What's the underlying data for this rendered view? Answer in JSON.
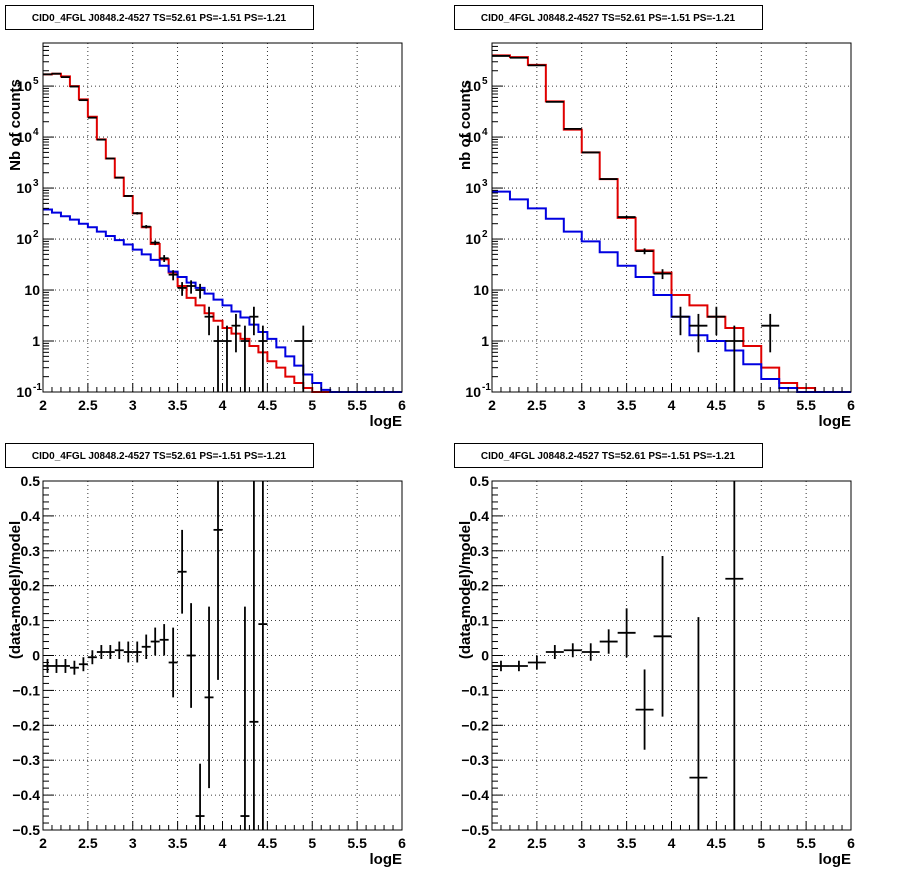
{
  "chart_data": [
    {
      "type": "line",
      "title": "CID0_4FGL J0848.2-4527 TS=52.61 PS=-1.51 PS=-1.21",
      "xlabel": "logE",
      "ylabel": "Nb of counts",
      "xlim": [
        2,
        6
      ],
      "ylim": [
        0.1,
        700000
      ],
      "yscale": "log",
      "grid": true,
      "x_ticks": [
        "2",
        "2.5",
        "3",
        "3.5",
        "4",
        "4.5",
        "5",
        "5.5",
        "6"
      ],
      "y_ticks": [
        {
          "value": 0.1,
          "base": "10",
          "exp": "-1"
        },
        {
          "value": 1,
          "label": "1"
        },
        {
          "value": 10,
          "label": "10"
        },
        {
          "value": 100,
          "base": "10",
          "exp": "2"
        },
        {
          "value": 1000,
          "base": "10",
          "exp": "3"
        },
        {
          "value": 10000,
          "base": "10",
          "exp": "4"
        },
        {
          "value": 100000,
          "base": "10",
          "exp": "5"
        }
      ],
      "bin_edges": [
        2.0,
        2.1,
        2.2,
        2.3,
        2.4,
        2.5,
        2.6,
        2.7,
        2.8,
        2.9,
        3.0,
        3.1,
        3.2,
        3.3,
        3.4,
        3.5,
        3.6,
        3.7,
        3.8,
        3.9,
        4.0,
        4.1,
        4.2,
        4.3,
        4.4,
        4.5,
        4.6,
        4.7,
        4.8,
        4.9,
        5.0,
        5.1,
        5.2,
        5.3,
        5.4,
        5.5,
        5.6,
        5.7,
        5.8,
        5.9,
        6.0
      ],
      "series": [
        {
          "color": "#e00000",
          "values": [
            170000,
            175000,
            155000,
            100000,
            55000,
            25000,
            9000,
            3800,
            1600,
            700,
            320,
            170,
            80,
            40,
            22,
            12,
            7,
            5,
            3.5,
            2.5,
            1.8,
            1.4,
            1.1,
            0.8,
            0.6,
            0.4,
            0.3,
            0.2,
            0.15,
            0.12,
            0.1,
            0.1,
            0.1,
            0.1,
            0.1,
            0.1,
            0.1,
            0.1,
            0.1,
            0.1
          ]
        },
        {
          "color": "#0000e0",
          "values": [
            380,
            330,
            280,
            240,
            200,
            170,
            140,
            115,
            95,
            78,
            62,
            50,
            39,
            30,
            23,
            18,
            14,
            11,
            8.5,
            6.5,
            5,
            3.8,
            2.9,
            2.1,
            1.5,
            1.1,
            0.75,
            0.5,
            0.33,
            0.22,
            0.15,
            0.11,
            0.1,
            0.1,
            0.1,
            0.1,
            0.1,
            0.1,
            0.1,
            0.1
          ]
        }
      ],
      "points": [
        {
          "x": 2.05,
          "y": 170000,
          "err": 400,
          "xerr": 0.05
        },
        {
          "x": 2.15,
          "y": 175000,
          "err": 420,
          "xerr": 0.05
        },
        {
          "x": 2.25,
          "y": 150000,
          "err": 390,
          "xerr": 0.05
        },
        {
          "x": 2.35,
          "y": 98000,
          "err": 310,
          "xerr": 0.05
        },
        {
          "x": 2.45,
          "y": 53000,
          "err": 230,
          "xerr": 0.05
        },
        {
          "x": 2.55,
          "y": 24000,
          "err": 155,
          "xerr": 0.05
        },
        {
          "x": 2.65,
          "y": 8900,
          "err": 94,
          "xerr": 0.05
        },
        {
          "x": 2.75,
          "y": 3800,
          "err": 62,
          "xerr": 0.05
        },
        {
          "x": 2.85,
          "y": 1600,
          "err": 40,
          "xerr": 0.05
        },
        {
          "x": 2.95,
          "y": 700,
          "err": 26,
          "xerr": 0.05
        },
        {
          "x": 3.05,
          "y": 320,
          "err": 18,
          "xerr": 0.05
        },
        {
          "x": 3.15,
          "y": 175,
          "err": 13,
          "xerr": 0.05
        },
        {
          "x": 3.25,
          "y": 85,
          "err": 9,
          "xerr": 0.05
        },
        {
          "x": 3.35,
          "y": 42,
          "err": 6.5,
          "xerr": 0.05
        },
        {
          "x": 3.45,
          "y": 20,
          "err": 4.5,
          "xerr": 0.05
        },
        {
          "x": 3.55,
          "y": 11,
          "err": 3.3,
          "xerr": 0.05
        },
        {
          "x": 3.65,
          "y": 12,
          "err": 3.5,
          "xerr": 0.05
        },
        {
          "x": 3.75,
          "y": 10,
          "err": 3.2,
          "xerr": 0.05
        },
        {
          "x": 3.85,
          "y": 3,
          "err": 1.7,
          "xerr": 0.05
        },
        {
          "x": 3.95,
          "y": 1,
          "err": 1,
          "xerr": 0.05
        },
        {
          "x": 4.05,
          "y": 1,
          "err": 1,
          "xerr": 0.05
        },
        {
          "x": 4.15,
          "y": 2,
          "err": 1.4,
          "xerr": 0.05
        },
        {
          "x": 4.25,
          "y": 1,
          "err": 1,
          "xerr": 0.05
        },
        {
          "x": 4.35,
          "y": 3,
          "err": 1.7,
          "xerr": 0.05
        },
        {
          "x": 4.45,
          "y": 1,
          "err": 1,
          "xerr": 0.05
        },
        {
          "x": 4.9,
          "y": 1,
          "err": 1,
          "xerr": 0.1
        }
      ]
    },
    {
      "type": "line",
      "title": "CID0_4FGL J0848.2-4527 TS=52.61 PS=-1.51 PS=-1.21",
      "xlabel": "logE",
      "ylabel": "nb of counts",
      "xlim": [
        2,
        6
      ],
      "ylim": [
        0.1,
        700000
      ],
      "yscale": "log",
      "grid": true,
      "x_ticks": [
        "2",
        "2.5",
        "3",
        "3.5",
        "4",
        "4.5",
        "5",
        "5.5",
        "6"
      ],
      "y_ticks": [
        {
          "value": 0.1,
          "base": "10",
          "exp": "-1"
        },
        {
          "value": 1,
          "label": "1"
        },
        {
          "value": 10,
          "label": "10"
        },
        {
          "value": 100,
          "base": "10",
          "exp": "2"
        },
        {
          "value": 1000,
          "base": "10",
          "exp": "3"
        },
        {
          "value": 10000,
          "base": "10",
          "exp": "4"
        },
        {
          "value": 100000,
          "base": "10",
          "exp": "5"
        }
      ],
      "bin_edges": [
        2.0,
        2.2,
        2.4,
        2.6,
        2.8,
        3.0,
        3.2,
        3.4,
        3.6,
        3.8,
        4.0,
        4.2,
        4.4,
        4.6,
        4.8,
        5.0,
        5.2,
        5.4,
        5.6,
        5.8,
        6.0
      ],
      "series": [
        {
          "color": "#e00000",
          "values": [
            400000,
            370000,
            260000,
            50000,
            14000,
            5000,
            1500,
            260,
            60,
            22,
            8,
            5,
            3,
            1.8,
            0.8,
            0.3,
            0.15,
            0.12,
            0.1,
            0.1
          ]
        },
        {
          "color": "#0000e0",
          "values": [
            850,
            600,
            400,
            250,
            140,
            90,
            55,
            30,
            18,
            8,
            3,
            1.3,
            1,
            0.65,
            0.35,
            0.18,
            0.12,
            0.1,
            0.1,
            0.1
          ]
        }
      ],
      "points": [
        {
          "x": 2.1,
          "y": 390000,
          "err": 620,
          "xerr": 0.1
        },
        {
          "x": 2.3,
          "y": 360000,
          "err": 600,
          "xerr": 0.1
        },
        {
          "x": 2.5,
          "y": 255000,
          "err": 505,
          "xerr": 0.1
        },
        {
          "x": 2.7,
          "y": 49000,
          "err": 220,
          "xerr": 0.1
        },
        {
          "x": 2.9,
          "y": 14500,
          "err": 120,
          "xerr": 0.1
        },
        {
          "x": 3.1,
          "y": 5000,
          "err": 70,
          "xerr": 0.1
        },
        {
          "x": 3.3,
          "y": 1500,
          "err": 39,
          "xerr": 0.1
        },
        {
          "x": 3.5,
          "y": 270,
          "err": 16,
          "xerr": 0.1
        },
        {
          "x": 3.7,
          "y": 58,
          "err": 7.6,
          "xerr": 0.1
        },
        {
          "x": 3.9,
          "y": 21,
          "err": 4.6,
          "xerr": 0.1
        },
        {
          "x": 4.1,
          "y": 3,
          "err": 1.7,
          "xerr": 0.1
        },
        {
          "x": 4.3,
          "y": 2,
          "err": 1.4,
          "xerr": 0.1
        },
        {
          "x": 4.5,
          "y": 3,
          "err": 1.7,
          "xerr": 0.1
        },
        {
          "x": 4.7,
          "y": 1,
          "err": 1,
          "xerr": 0.1
        },
        {
          "x": 5.1,
          "y": 2,
          "err": 1.4,
          "xerr": 0.1
        }
      ]
    },
    {
      "type": "scatter",
      "title": "CID0_4FGL J0848.2-4527 TS=52.61 PS=-1.51 PS=-1.21",
      "xlabel": "logE",
      "ylabel": "(data-model)/model",
      "xlim": [
        2,
        6
      ],
      "ylim": [
        -0.5,
        0.5
      ],
      "yscale": "linear",
      "grid": true,
      "x_ticks": [
        "2",
        "2.5",
        "3",
        "3.5",
        "4",
        "4.5",
        "5",
        "5.5",
        "6"
      ],
      "y_ticks": [
        {
          "value": -0.5,
          "label": "−0.5"
        },
        {
          "value": -0.4,
          "label": "−0.4"
        },
        {
          "value": -0.3,
          "label": "−0.3"
        },
        {
          "value": -0.2,
          "label": "−0.2"
        },
        {
          "value": -0.1,
          "label": "−0.1"
        },
        {
          "value": 0,
          "label": "0"
        },
        {
          "value": 0.1,
          "label": "0.1"
        },
        {
          "value": 0.2,
          "label": "0.2"
        },
        {
          "value": 0.3,
          "label": "0.3"
        },
        {
          "value": 0.4,
          "label": "0.4"
        },
        {
          "value": 0.5,
          "label": "0.5"
        }
      ],
      "points": [
        {
          "x": 2.05,
          "y": -0.03,
          "err": 0.02,
          "xerr": 0.05
        },
        {
          "x": 2.15,
          "y": -0.03,
          "err": 0.02,
          "xerr": 0.05
        },
        {
          "x": 2.25,
          "y": -0.03,
          "err": 0.02,
          "xerr": 0.05
        },
        {
          "x": 2.35,
          "y": -0.035,
          "err": 0.02,
          "xerr": 0.05
        },
        {
          "x": 2.45,
          "y": -0.025,
          "err": 0.02,
          "xerr": 0.05
        },
        {
          "x": 2.55,
          "y": -0.005,
          "err": 0.02,
          "xerr": 0.05
        },
        {
          "x": 2.65,
          "y": 0.01,
          "err": 0.02,
          "xerr": 0.05
        },
        {
          "x": 2.75,
          "y": 0.01,
          "err": 0.02,
          "xerr": 0.05
        },
        {
          "x": 2.85,
          "y": 0.015,
          "err": 0.025,
          "xerr": 0.05
        },
        {
          "x": 2.95,
          "y": 0.01,
          "err": 0.03,
          "xerr": 0.05
        },
        {
          "x": 3.05,
          "y": 0.01,
          "err": 0.03,
          "xerr": 0.05
        },
        {
          "x": 3.15,
          "y": 0.025,
          "err": 0.035,
          "xerr": 0.05
        },
        {
          "x": 3.25,
          "y": 0.04,
          "err": 0.04,
          "xerr": 0.05
        },
        {
          "x": 3.35,
          "y": 0.045,
          "err": 0.045,
          "xerr": 0.05
        },
        {
          "x": 3.45,
          "y": -0.02,
          "err": 0.1,
          "xerr": 0.05
        },
        {
          "x": 3.55,
          "y": 0.24,
          "err": 0.12,
          "xerr": 0.05
        },
        {
          "x": 3.65,
          "y": 0.0,
          "err": 0.15,
          "xerr": 0.05
        },
        {
          "x": 3.75,
          "y": -0.46,
          "err": 0.15,
          "xerr": 0.05
        },
        {
          "x": 3.85,
          "y": -0.12,
          "err": 0.26,
          "xerr": 0.05
        },
        {
          "x": 3.95,
          "y": 0.36,
          "err": 0.43,
          "xerr": 0.05
        },
        {
          "x": 4.25,
          "y": -0.46,
          "err": 0.6,
          "xerr": 0.05
        },
        {
          "x": 4.35,
          "y": -0.19,
          "err": 1.0,
          "xerr": 0.05
        },
        {
          "x": 4.45,
          "y": 0.09,
          "err": 1.0,
          "xerr": 0.05
        }
      ]
    },
    {
      "type": "scatter",
      "title": "CID0_4FGL J0848.2-4527 TS=52.61 PS=-1.51 PS=-1.21",
      "xlabel": "logE",
      "ylabel": "(data-model)/model",
      "xlim": [
        2,
        6
      ],
      "ylim": [
        -0.5,
        0.5
      ],
      "yscale": "linear",
      "grid": true,
      "x_ticks": [
        "2",
        "2.5",
        "3",
        "3.5",
        "4",
        "4.5",
        "5",
        "5.5",
        "6"
      ],
      "y_ticks": [
        {
          "value": -0.5,
          "label": "−0.5"
        },
        {
          "value": -0.4,
          "label": "−0.4"
        },
        {
          "value": -0.3,
          "label": "−0.3"
        },
        {
          "value": -0.2,
          "label": "−0.2"
        },
        {
          "value": -0.1,
          "label": "−0.1"
        },
        {
          "value": 0,
          "label": "0"
        },
        {
          "value": 0.1,
          "label": "0.1"
        },
        {
          "value": 0.2,
          "label": "0.2"
        },
        {
          "value": 0.3,
          "label": "0.3"
        },
        {
          "value": 0.4,
          "label": "0.4"
        },
        {
          "value": 0.5,
          "label": "0.5"
        }
      ],
      "points": [
        {
          "x": 2.1,
          "y": -0.03,
          "err": 0.015,
          "xerr": 0.1
        },
        {
          "x": 2.3,
          "y": -0.03,
          "err": 0.015,
          "xerr": 0.1
        },
        {
          "x": 2.5,
          "y": -0.02,
          "err": 0.02,
          "xerr": 0.1
        },
        {
          "x": 2.7,
          "y": 0.01,
          "err": 0.02,
          "xerr": 0.1
        },
        {
          "x": 2.9,
          "y": 0.015,
          "err": 0.02,
          "xerr": 0.1
        },
        {
          "x": 3.1,
          "y": 0.01,
          "err": 0.025,
          "xerr": 0.1
        },
        {
          "x": 3.3,
          "y": 0.04,
          "err": 0.035,
          "xerr": 0.1
        },
        {
          "x": 3.5,
          "y": 0.065,
          "err": 0.07,
          "xerr": 0.1
        },
        {
          "x": 3.7,
          "y": -0.155,
          "err": 0.115,
          "xerr": 0.1
        },
        {
          "x": 3.9,
          "y": 0.055,
          "err": 0.23,
          "xerr": 0.1
        },
        {
          "x": 4.3,
          "y": -0.35,
          "err": 0.46,
          "xerr": 0.1
        },
        {
          "x": 4.7,
          "y": 0.22,
          "err": 1.0,
          "xerr": 0.1
        }
      ]
    }
  ]
}
